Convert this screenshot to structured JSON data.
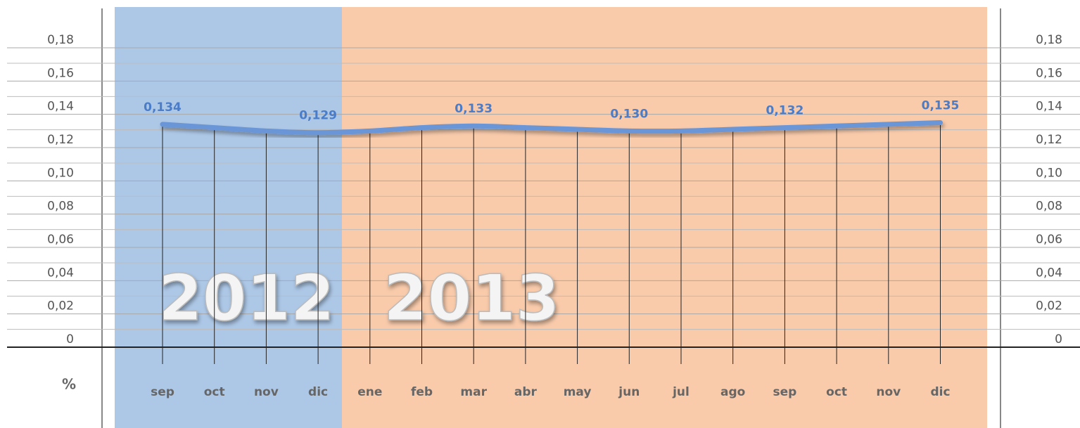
{
  "chart_data": {
    "type": "line",
    "y_label": "%",
    "categories": [
      "sep",
      "oct",
      "nov",
      "dic",
      "ene",
      "feb",
      "mar",
      "abr",
      "may",
      "jun",
      "jul",
      "ago",
      "sep",
      "oct",
      "nov",
      "dic"
    ],
    "series": [
      {
        "name": null,
        "color": "#6a95d6",
        "values": [
          0.134,
          0.132,
          0.13,
          0.129,
          0.13,
          0.132,
          0.133,
          0.132,
          0.131,
          0.13,
          0.13,
          0.131,
          0.132,
          0.133,
          0.134,
          0.135
        ],
        "value_labels": [
          "0,134",
          null,
          null,
          "0,129",
          null,
          null,
          "0,133",
          null,
          null,
          "0,130",
          null,
          null,
          "0,132",
          null,
          null,
          "0,135"
        ]
      }
    ],
    "ylim": [
      0,
      0.18
    ],
    "yticks": [
      0,
      {
        "value": 0.02,
        "label": "0,02"
      },
      {
        "value": 0.04,
        "label": "0,04"
      },
      {
        "value": 0.06,
        "label": "0,06"
      },
      {
        "value": 0.08,
        "label": "0,08"
      },
      {
        "value": 0.1,
        "label": "0,10"
      },
      {
        "value": 0.12,
        "label": "0,12"
      },
      {
        "value": 0.14,
        "label": "0,14"
      },
      {
        "value": 0.16,
        "label": "0,16"
      },
      {
        "value": 0.18,
        "label": "0,18"
      }
    ],
    "grid": true
  },
  "year_labels": [
    "2012",
    "2013"
  ]
}
